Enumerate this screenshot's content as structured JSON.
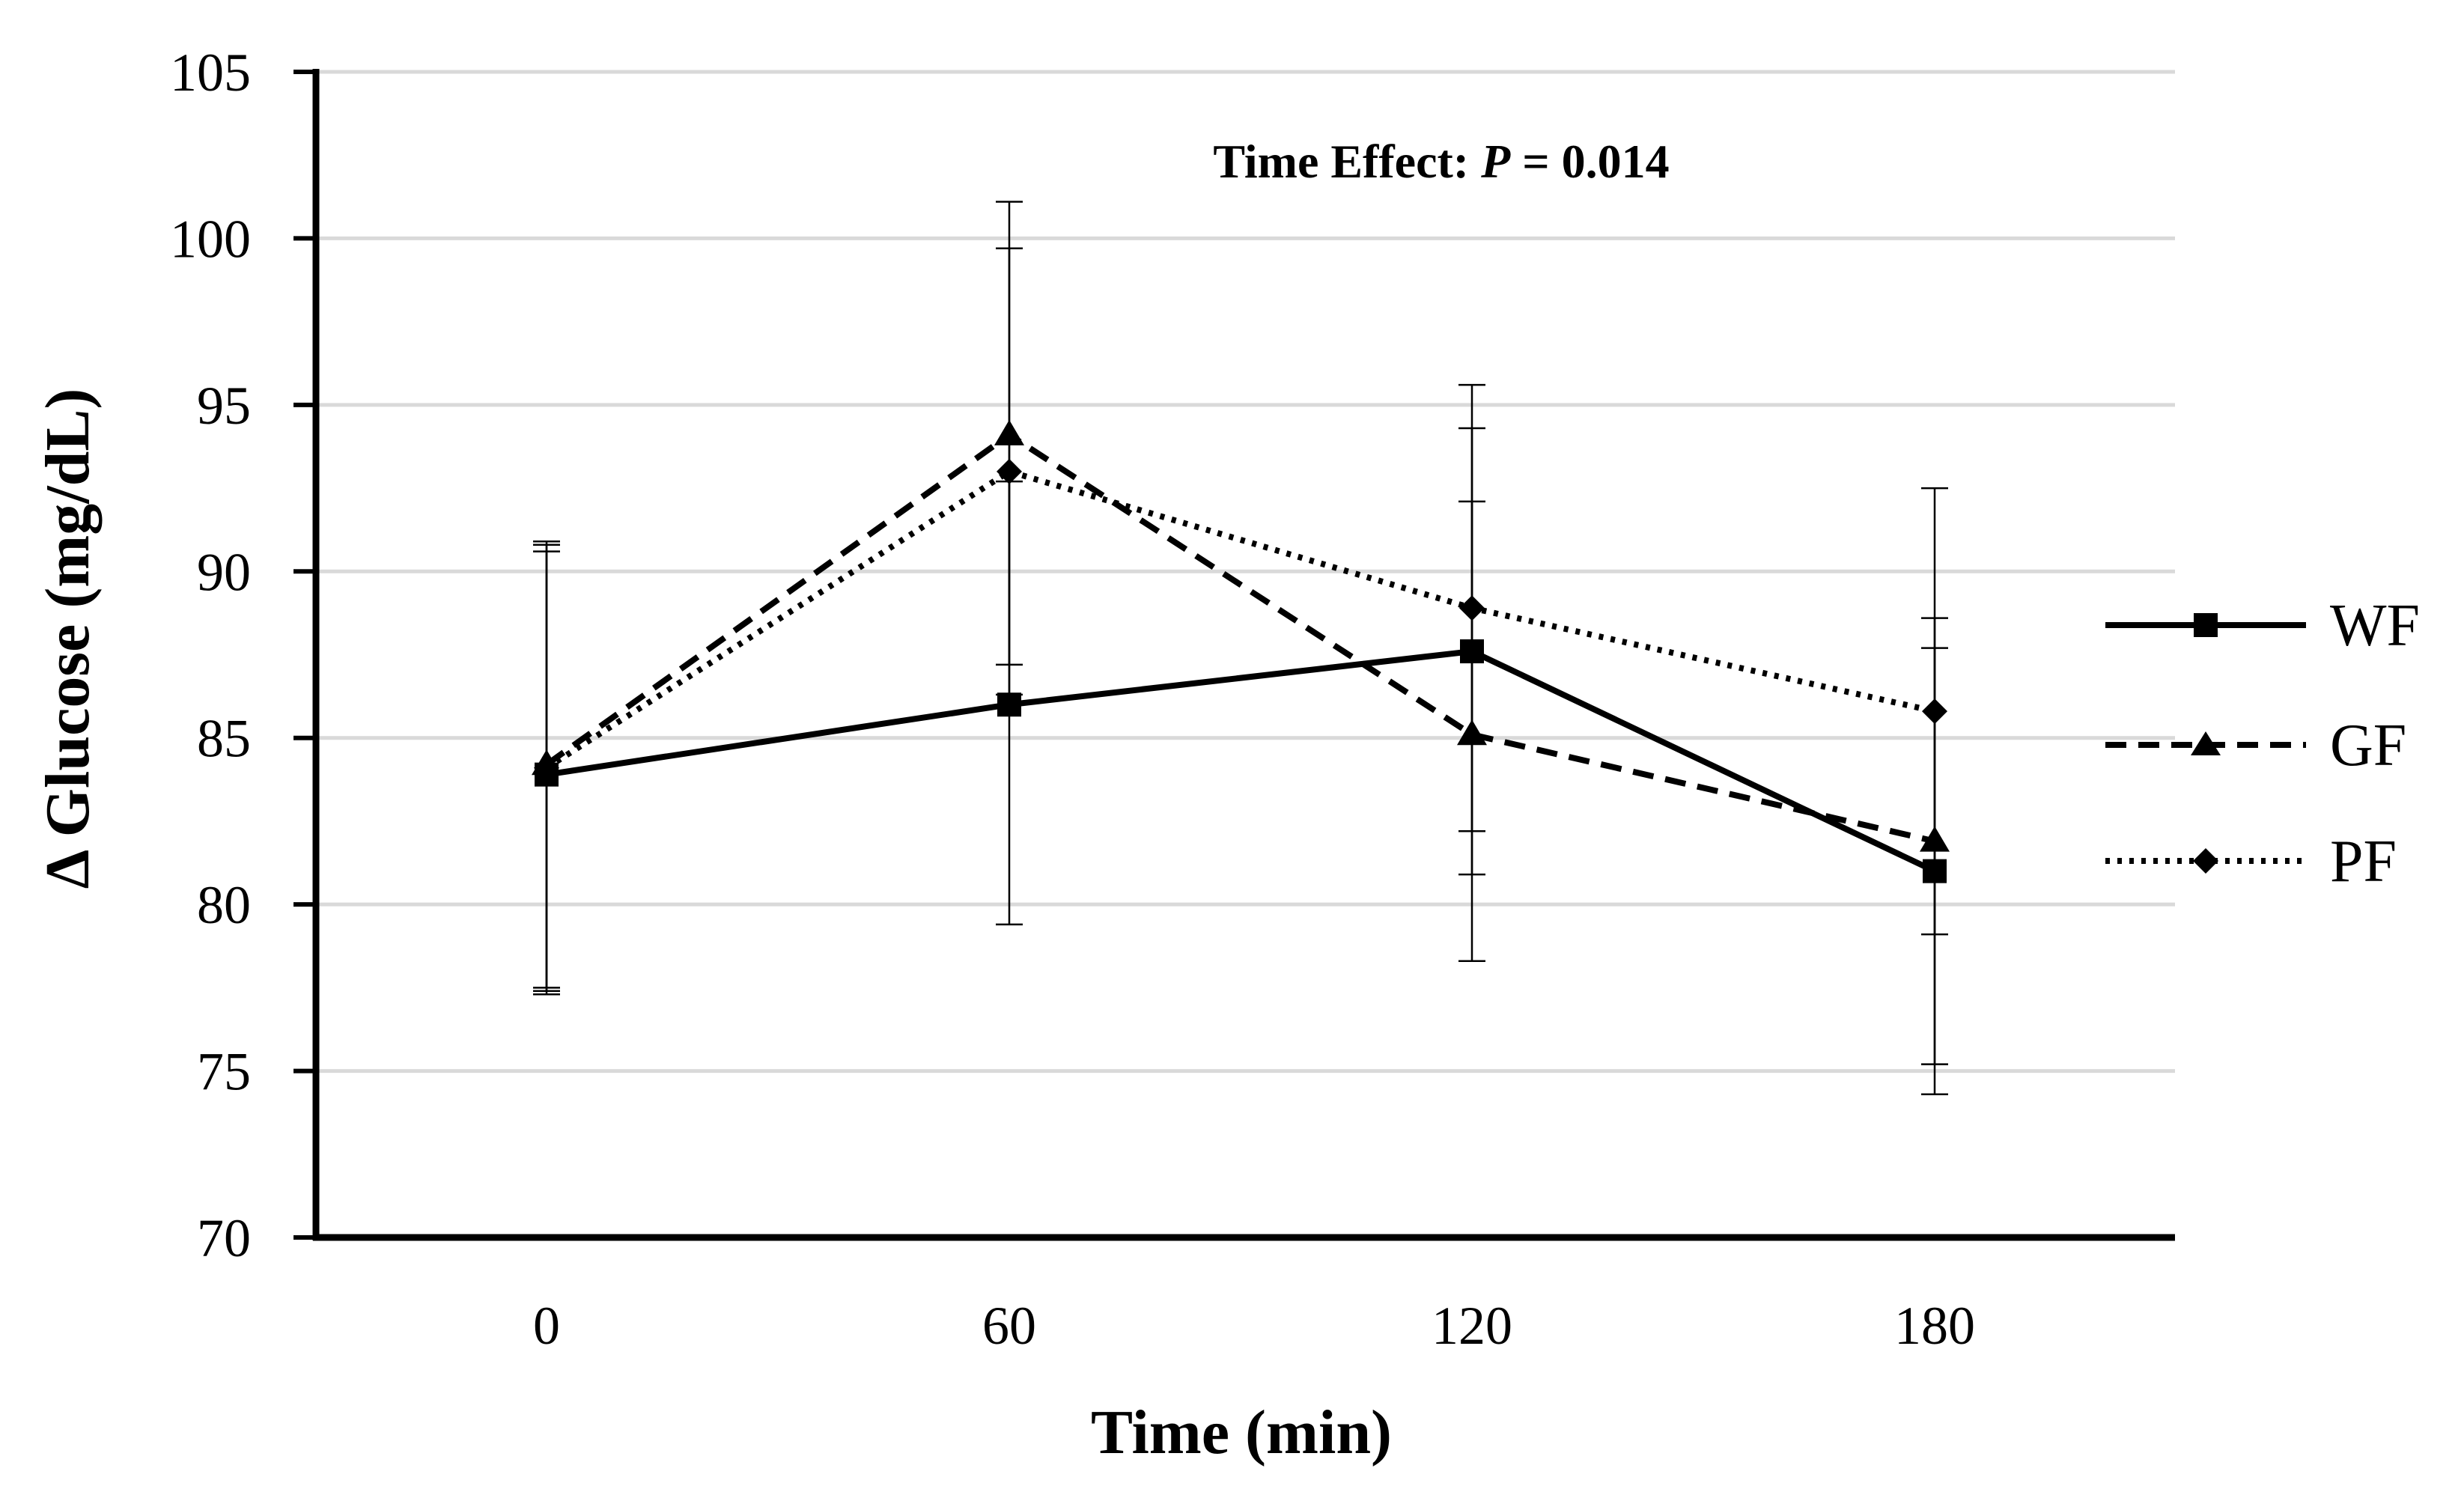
{
  "chart_data": {
    "type": "line",
    "title": "",
    "xlabel": "Time (min)",
    "ylabel": "Δ Glucose (mg/dL)",
    "x": [
      0,
      60,
      120,
      180
    ],
    "x_tick_labels": [
      "0",
      "60",
      "120",
      "180"
    ],
    "ylim": [
      70,
      105
    ],
    "y_ticks": [
      70,
      75,
      80,
      85,
      90,
      95,
      100,
      105
    ],
    "grid": true,
    "legend_position": "right",
    "annotation": {
      "prefix": "Time Effect: ",
      "italic": "P",
      "suffix": " = 0.014"
    },
    "series": [
      {
        "name": "WF",
        "marker": "square",
        "dash": "solid",
        "values": [
          83.9,
          86.0,
          87.6,
          81.0
        ],
        "error_low": [
          77.3,
          79.4,
          80.9,
          74.3
        ],
        "error_high": [
          90.6,
          92.7,
          94.3,
          87.7
        ]
      },
      {
        "name": "GF",
        "marker": "triangle",
        "dash": "dashed",
        "values": [
          84.2,
          94.1,
          85.1,
          81.9
        ],
        "error_low": [
          77.5,
          87.2,
          78.3,
          75.2
        ],
        "error_high": [
          90.9,
          101.1,
          92.1,
          88.6
        ]
      },
      {
        "name": "PF",
        "marker": "diamond",
        "dash": "dotted",
        "values": [
          84.1,
          93.0,
          88.9,
          85.8
        ],
        "error_low": [
          77.4,
          86.3,
          82.2,
          79.1
        ],
        "error_high": [
          90.8,
          99.7,
          95.6,
          92.5
        ]
      }
    ]
  }
}
